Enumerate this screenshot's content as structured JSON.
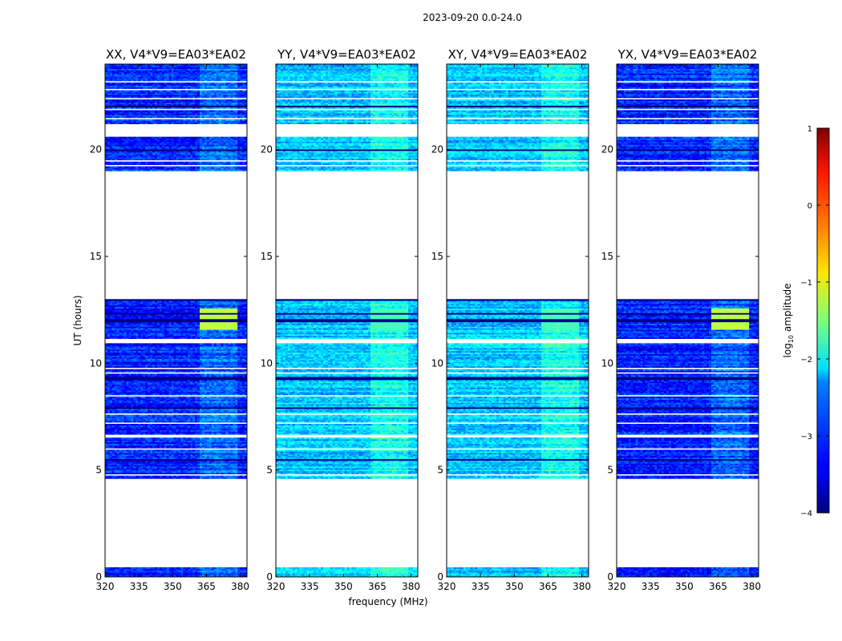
{
  "chart_data": {
    "type": "heatmap",
    "suptitle": "2023-09-20 0.0-24.0",
    "xlabel": "frequency (MHz)",
    "ylabel": "UT (hours)",
    "xlim": [
      320,
      383
    ],
    "ylim": [
      0,
      24
    ],
    "xticks": [
      "320",
      "335",
      "350",
      "365",
      "380"
    ],
    "yticks": [
      "0",
      "5",
      "10",
      "15",
      "20"
    ],
    "colorbar": {
      "label": "log10 amplitude",
      "label_main": "log",
      "label_sub": "10",
      "label_tail": " amplitude",
      "range": [
        -4,
        1
      ],
      "ticks": [
        "1",
        "0",
        "−1",
        "−2",
        "−3",
        "−4"
      ],
      "colormap": "jet"
    },
    "panels": [
      {
        "title": "XX, V4*V9=EA03*EA02",
        "base_level": -3.2,
        "rfi_level": -1.2
      },
      {
        "title": "YY, V4*V9=EA03*EA02",
        "base_level": -2.4,
        "rfi_level": -1.8
      },
      {
        "title": "XY, V4*V9=EA03*EA02",
        "base_level": -2.4,
        "rfi_level": -1.8
      },
      {
        "title": "YX, V4*V9=EA03*EA02",
        "base_level": -3.2,
        "rfi_level": -1.2
      }
    ],
    "data_time_ranges_hours": [
      [
        0.0,
        0.45
      ],
      [
        4.6,
        13.0
      ],
      [
        19.0,
        20.6
      ],
      [
        21.2,
        24.0
      ]
    ],
    "rfi_band_mhz": [
      362,
      379
    ],
    "rfi_time_range_hours": [
      11.6,
      12.6
    ]
  }
}
